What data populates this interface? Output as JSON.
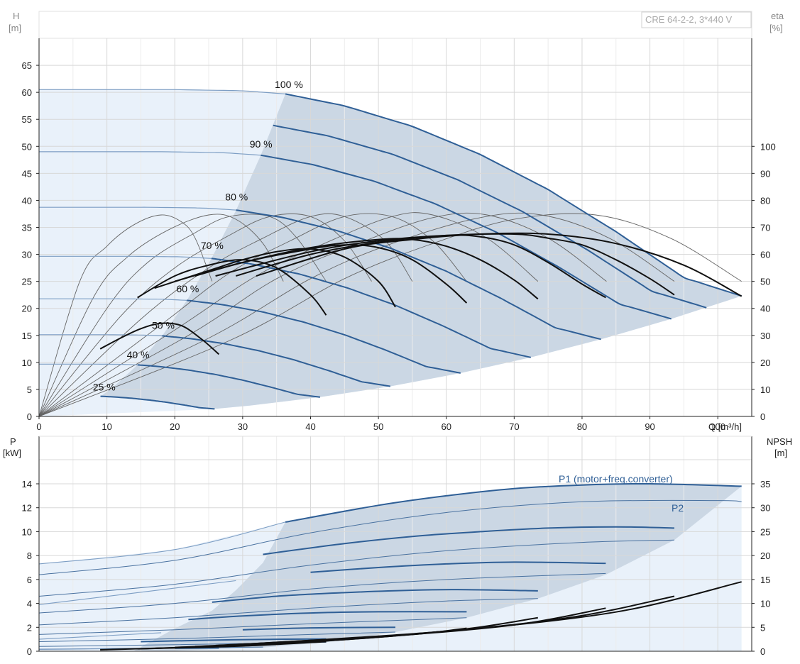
{
  "chart_data": [
    {
      "type": "line",
      "title": "",
      "model_label": "CRE 64-2-2, 3*440 V",
      "xlabel": "Q [m³/h]",
      "ylabel_left": [
        "H",
        "[m]"
      ],
      "ylabel_right": [
        "eta",
        "[%]"
      ],
      "xlim": [
        0,
        105
      ],
      "ylim": [
        0,
        70
      ],
      "eta_lim": [
        0,
        140
      ],
      "x_ticks": [
        0,
        10,
        20,
        30,
        40,
        50,
        60,
        70,
        80,
        90,
        100
      ],
      "y_ticks": [
        0,
        5,
        10,
        15,
        20,
        25,
        30,
        35,
        40,
        45,
        50,
        55,
        60,
        65
      ],
      "eta_ticks": [
        0,
        10,
        20,
        30,
        40,
        50,
        60,
        70,
        80,
        90,
        100
      ],
      "grid": true,
      "colors": {
        "head": "#2f5f96",
        "eta": "#111111",
        "thin": "#666666",
        "area": "#cbd7e4",
        "area_light": "#e9f1fa"
      },
      "speed_curves": [
        {
          "label": "100 %",
          "s": 1.0
        },
        {
          "label": "90 %",
          "s": 0.9
        },
        {
          "label": "80 %",
          "s": 0.8
        },
        {
          "label": "70 %",
          "s": 0.7
        },
        {
          "label": "60 %",
          "s": 0.6
        },
        {
          "label": "50 %",
          "s": 0.5
        },
        {
          "label": "40 %",
          "s": 0.4
        },
        {
          "label": "25 %",
          "s": 0.25
        }
      ],
      "base_head_curve": {
        "q": [
          0,
          10,
          20,
          30,
          36.3,
          45,
          55,
          65,
          75,
          85,
          95,
          103.5
        ],
        "h": [
          60.5,
          60.5,
          60.5,
          60.3,
          59.7,
          57.5,
          53.7,
          48.5,
          42,
          34.2,
          25.7,
          22.3
        ]
      },
      "eta_curves": [
        {
          "s": 0.5,
          "q": [
            9,
            12,
            15,
            18,
            21,
            24,
            26.5
          ],
          "eta": [
            25,
            29,
            32.5,
            34.5,
            33.6,
            28.5,
            23
          ]
        },
        {
          "s": 0.6,
          "q": [
            14.5,
            20,
            25,
            30,
            35,
            40,
            42.3
          ],
          "eta": [
            44,
            52,
            56,
            58,
            55,
            45,
            37.5
          ]
        },
        {
          "s": 0.7,
          "q": [
            17,
            25,
            30,
            35,
            40,
            45,
            50,
            52.5
          ],
          "eta": [
            47.5,
            54,
            58,
            61,
            62,
            59,
            50,
            40.5
          ]
        },
        {
          "s": 0.8,
          "q": [
            20,
            30,
            40,
            45,
            50,
            55,
            60,
            63
          ],
          "eta": [
            50,
            57,
            62,
            63.5,
            62.5,
            58,
            49,
            42
          ]
        },
        {
          "s": 0.9,
          "q": [
            23,
            30,
            40,
            50,
            55,
            60,
            65,
            70,
            73.5
          ],
          "eta": [
            52,
            57,
            62.5,
            65.5,
            65.5,
            63,
            58,
            50.5,
            43.5
          ]
        },
        {
          "s": 0.95,
          "q": [
            26,
            40,
            50,
            60,
            65,
            70,
            75,
            80,
            83.5
          ],
          "eta": [
            52,
            61,
            65,
            67,
            66.5,
            63.5,
            57,
            49,
            44
          ]
        },
        {
          "s": 1.0,
          "q": [
            29,
            40,
            50,
            60,
            70,
            75,
            80,
            85,
            90,
            93.6
          ],
          "eta": [
            52,
            60,
            64.5,
            67,
            67.5,
            66,
            63.5,
            58,
            51,
            45
          ]
        },
        {
          "s": 1.05,
          "q": [
            32,
            45,
            55,
            65,
            75,
            85,
            95,
            103.5
          ],
          "eta": [
            52,
            62,
            65.5,
            67.5,
            67.5,
            64,
            56,
            44.5
          ]
        }
      ],
      "thin_curves": [
        {
          "x": [
            0,
            6,
            10,
            14,
            18,
            21,
            23,
            25.5
          ],
          "y": [
            0,
            25,
            31.5,
            35.5,
            37.3,
            36,
            33,
            25
          ]
        },
        {
          "x": [
            0,
            8,
            13,
            19,
            25,
            29,
            33,
            36
          ],
          "y": [
            0,
            22,
            29.5,
            34.5,
            37.3,
            36.5,
            32,
            25
          ]
        },
        {
          "x": [
            0,
            10,
            16,
            23,
            28,
            34,
            38,
            42.3
          ],
          "y": [
            0,
            20,
            28.5,
            34,
            37,
            37,
            33,
            25
          ]
        },
        {
          "x": [
            0,
            12,
            20,
            28,
            34,
            40,
            45,
            49
          ],
          "y": [
            0,
            18.5,
            27.5,
            33.5,
            37,
            37,
            32.5,
            25
          ]
        },
        {
          "x": [
            0,
            15,
            25,
            33,
            40,
            45,
            51,
            55
          ],
          "y": [
            0,
            18,
            27.5,
            33,
            37,
            37,
            32.5,
            25
          ]
        },
        {
          "x": [
            0,
            18,
            28,
            37,
            45,
            52,
            58,
            63
          ],
          "y": [
            0,
            17,
            26.5,
            32.5,
            37,
            37,
            32.5,
            25
          ]
        },
        {
          "x": [
            0,
            20,
            32,
            42,
            52,
            58,
            66,
            73.5
          ],
          "y": [
            0,
            16,
            26,
            32,
            37,
            37.3,
            33,
            25
          ]
        },
        {
          "x": [
            0,
            22,
            35,
            47,
            58,
            66,
            75,
            83.6
          ],
          "y": [
            0,
            15,
            25.5,
            32,
            36.8,
            37.3,
            33,
            25
          ]
        },
        {
          "x": [
            0,
            25,
            40,
            52,
            65,
            74,
            84,
            93.6
          ],
          "y": [
            0,
            14.5,
            25.5,
            32,
            36.8,
            37.3,
            33,
            25
          ]
        },
        {
          "x": [
            0,
            28,
            45,
            58,
            70,
            82,
            93,
            103.5
          ],
          "y": [
            0,
            14,
            25.5,
            32,
            36.5,
            37.3,
            33,
            25
          ]
        }
      ]
    },
    {
      "type": "line",
      "title": "",
      "ylabel_left": [
        "P",
        "[kW]"
      ],
      "ylabel_right": [
        "NPSH",
        "[m]"
      ],
      "xlim": [
        0,
        105
      ],
      "ylim": [
        0,
        16
      ],
      "npsh_lim": [
        0,
        40
      ],
      "y_ticks": [
        0,
        2,
        4,
        6,
        8,
        10,
        12,
        14
      ],
      "npsh_ticks": [
        0,
        5,
        10,
        15,
        20,
        25,
        30,
        35
      ],
      "series_labels": [
        "P1 (motor+freq.converter)",
        "P2"
      ],
      "p1_curves": [
        {
          "s": 1.0,
          "q": [
            0,
            20,
            36.3,
            50,
            60,
            70,
            80,
            90,
            103.5
          ],
          "p": [
            7.3,
            8.5,
            10.8,
            12.2,
            13.0,
            13.6,
            13.9,
            14.0,
            13.8
          ]
        },
        {
          "s": 0.9,
          "q": [
            0,
            33,
            45,
            55,
            65,
            75,
            85,
            93.6
          ],
          "p": [
            5.4,
            8.1,
            9.0,
            9.6,
            10.0,
            10.3,
            10.4,
            10.3
          ]
        },
        {
          "s": 0.8,
          "q": [
            0,
            29,
            40,
            50,
            60,
            70,
            83.5
          ],
          "p": [
            3.9,
            5.9,
            6.6,
            7.0,
            7.3,
            7.45,
            7.35
          ]
        },
        {
          "s": 0.7,
          "q": [
            0,
            25.5,
            35,
            45,
            55,
            63,
            73.5
          ],
          "p": [
            2.7,
            4.1,
            4.6,
            4.9,
            5.1,
            5.15,
            5.05
          ]
        },
        {
          "s": 0.6,
          "q": [
            0,
            22,
            30,
            40,
            50,
            63
          ],
          "p": [
            1.75,
            2.65,
            2.95,
            3.2,
            3.3,
            3.3
          ]
        },
        {
          "s": 0.5,
          "q": [
            0,
            18,
            30,
            40,
            52.5
          ],
          "p": [
            1.0,
            1.55,
            1.8,
            1.95,
            2.0
          ]
        },
        {
          "s": 0.4,
          "q": [
            0,
            15,
            25,
            35,
            42.3
          ],
          "p": [
            0.5,
            0.8,
            0.92,
            1.0,
            1.02
          ]
        },
        {
          "s": 0.25,
          "q": [
            0,
            9,
            20,
            26.5
          ],
          "p": [
            0.15,
            0.2,
            0.25,
            0.27
          ]
        }
      ],
      "p2_curves": [
        {
          "s": 1.0,
          "q": [
            0,
            20,
            40,
            60,
            80,
            100,
            103.5
          ],
          "p": [
            6.4,
            7.6,
            9.9,
            11.6,
            12.5,
            12.6,
            12.5
          ]
        },
        {
          "s": 0.9,
          "q": [
            0,
            20,
            40,
            60,
            80,
            93.6
          ],
          "p": [
            4.6,
            5.6,
            7.2,
            8.4,
            9.1,
            9.3
          ]
        },
        {
          "s": 0.8,
          "q": [
            0,
            20,
            40,
            60,
            83.5
          ],
          "p": [
            3.2,
            4.0,
            5.2,
            6.0,
            6.5
          ]
        },
        {
          "s": 0.7,
          "q": [
            0,
            20,
            40,
            60,
            73.5
          ],
          "p": [
            2.2,
            2.8,
            3.6,
            4.2,
            4.4
          ]
        },
        {
          "s": 0.6,
          "q": [
            0,
            20,
            40,
            63
          ],
          "p": [
            1.4,
            1.8,
            2.3,
            2.8
          ]
        },
        {
          "s": 0.5,
          "q": [
            0,
            20,
            40,
            52.5
          ],
          "p": [
            0.8,
            1.05,
            1.4,
            1.6
          ]
        },
        {
          "s": 0.4,
          "q": [
            0,
            20,
            42.3
          ],
          "p": [
            0.4,
            0.55,
            0.75
          ]
        },
        {
          "s": 0.3,
          "q": [
            0,
            15,
            33
          ],
          "p": [
            0.17,
            0.25,
            0.35
          ]
        }
      ],
      "npsh_curves": [
        {
          "q": [
            9,
            26.5
          ],
          "npsh": [
            0.3,
            1.0
          ]
        },
        {
          "q": [
            14.5,
            30,
            42.3
          ],
          "npsh": [
            0.5,
            1.1,
            2.0
          ]
        },
        {
          "q": [
            17,
            35,
            52.5
          ],
          "npsh": [
            0.6,
            1.5,
            3.2
          ]
        },
        {
          "q": [
            20,
            40,
            55,
            63
          ],
          "npsh": [
            0.8,
            2.0,
            3.5,
            4.8
          ]
        },
        {
          "q": [
            23,
            45,
            62,
            73.5
          ],
          "npsh": [
            1.0,
            2.5,
            4.5,
            7.0
          ]
        },
        {
          "q": [
            26,
            50,
            70,
            83.5
          ],
          "npsh": [
            1.2,
            3.0,
            5.5,
            9.0
          ]
        },
        {
          "q": [
            29,
            55,
            78,
            93.6
          ],
          "npsh": [
            1.4,
            3.6,
            7.0,
            11.5
          ]
        },
        {
          "q": [
            32,
            60,
            85,
            103.5
          ],
          "npsh": [
            1.6,
            4.2,
            8.2,
            14.5
          ]
        }
      ]
    }
  ]
}
